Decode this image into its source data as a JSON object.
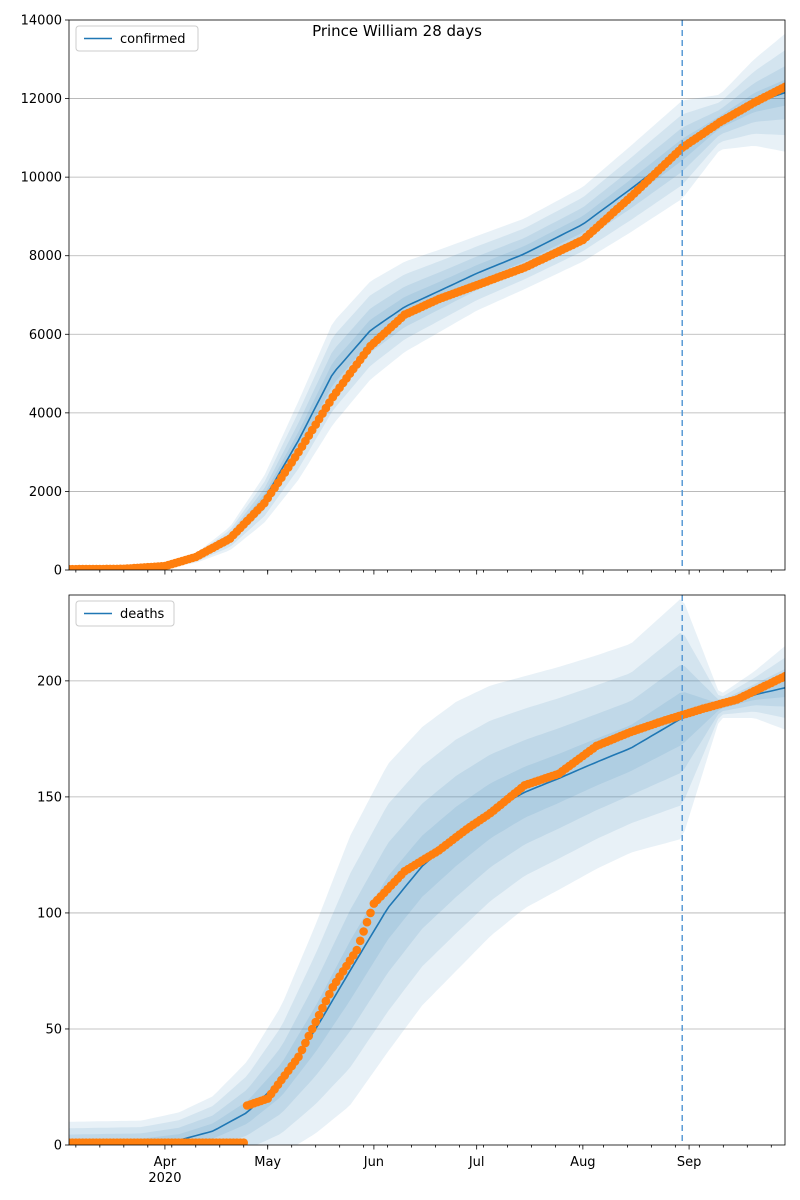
{
  "figure": {
    "title": "Prince William 28 days"
  },
  "colors": {
    "model_line": "#1f77b4",
    "band": "#1f77b4",
    "observed": "#ff7f0e",
    "vline": "#5a9bd5",
    "grid": "#b0b0b0"
  },
  "x_axis": {
    "start": "2020-03-04",
    "end": "2020-09-29",
    "ticks": [
      {
        "date": "2020-04-01",
        "label": "Apr",
        "sublabel": "2020"
      },
      {
        "date": "2020-05-01",
        "label": "May",
        "sublabel": ""
      },
      {
        "date": "2020-06-01",
        "label": "Jun",
        "sublabel": ""
      },
      {
        "date": "2020-07-01",
        "label": "Jul",
        "sublabel": ""
      },
      {
        "date": "2020-08-01",
        "label": "Aug",
        "sublabel": ""
      },
      {
        "date": "2020-09-01",
        "label": "Sep",
        "sublabel": ""
      }
    ],
    "forecast_start": "2020-08-30"
  },
  "chart_data": [
    {
      "type": "line",
      "legend": "confirmed",
      "legend_position": "top-left",
      "ylim": [
        0,
        14000
      ],
      "yticks": [
        0,
        2000,
        4000,
        6000,
        8000,
        10000,
        12000,
        14000
      ],
      "grid": true,
      "model": {
        "dates": [
          "2020-03-04",
          "2020-03-20",
          "2020-04-01",
          "2020-04-10",
          "2020-04-20",
          "2020-04-30",
          "2020-05-10",
          "2020-05-20",
          "2020-05-31",
          "2020-06-10",
          "2020-06-20",
          "2020-07-01",
          "2020-07-15",
          "2020-08-01",
          "2020-08-15",
          "2020-08-30",
          "2020-09-10",
          "2020-09-20",
          "2020-09-29"
        ],
        "values": [
          0,
          20,
          100,
          300,
          800,
          1800,
          3300,
          5000,
          6100,
          6700,
          7100,
          7550,
          8050,
          8800,
          9700,
          10700,
          11400,
          11900,
          12150
        ],
        "band_spread": [
          0,
          10,
          40,
          120,
          300,
          600,
          1000,
          1300,
          1250,
          1150,
          1050,
          950,
          900,
          950,
          1100,
          1250,
          700,
          1100,
          1500
        ]
      },
      "observed": {
        "dates": [
          "2020-03-04",
          "2020-03-20",
          "2020-04-01",
          "2020-04-10",
          "2020-04-20",
          "2020-04-30",
          "2020-05-10",
          "2020-05-20",
          "2020-05-25",
          "2020-05-31",
          "2020-06-10",
          "2020-06-20",
          "2020-07-01",
          "2020-07-15",
          "2020-08-01",
          "2020-08-15",
          "2020-08-30",
          "2020-09-10",
          "2020-09-20",
          "2020-09-29"
        ],
        "values": [
          20,
          30,
          100,
          330,
          800,
          1700,
          3000,
          4400,
          5000,
          5700,
          6500,
          6900,
          7250,
          7700,
          8400,
          9500,
          10750,
          11400,
          11900,
          12300
        ]
      }
    },
    {
      "type": "line",
      "legend": "deaths",
      "legend_position": "top-left",
      "ylim": [
        0,
        237
      ],
      "yticks": [
        0,
        50,
        100,
        150,
        200
      ],
      "grid": true,
      "model": {
        "dates": [
          "2020-03-04",
          "2020-03-25",
          "2020-04-05",
          "2020-04-15",
          "2020-04-25",
          "2020-05-05",
          "2020-05-15",
          "2020-05-25",
          "2020-06-05",
          "2020-06-15",
          "2020-06-25",
          "2020-07-05",
          "2020-07-15",
          "2020-07-25",
          "2020-08-05",
          "2020-08-15",
          "2020-08-30",
          "2020-09-10",
          "2020-09-20",
          "2020-09-29"
        ],
        "values": [
          0,
          0.5,
          2,
          6,
          14,
          28,
          50,
          75,
          102,
          120,
          133,
          144,
          152,
          158,
          165,
          171,
          184,
          189,
          194,
          197
        ],
        "band_spread": [
          10,
          10,
          12,
          15,
          22,
          32,
          45,
          58,
          62,
          60,
          58,
          54,
          50,
          48,
          46,
          45,
          52,
          5,
          10,
          18
        ]
      },
      "observed": {
        "dates": [
          "2020-03-04",
          "2020-04-24",
          "2020-04-25",
          "2020-05-01",
          "2020-05-10",
          "2020-05-20",
          "2020-05-27",
          "2020-06-01",
          "2020-06-10",
          "2020-06-20",
          "2020-06-28",
          "2020-07-05",
          "2020-07-15",
          "2020-07-25",
          "2020-08-05",
          "2020-08-15",
          "2020-08-25",
          "2020-09-05",
          "2020-09-15",
          "2020-09-29"
        ],
        "values": [
          1,
          1,
          17,
          20,
          38,
          68,
          84,
          104,
          118,
          127,
          136,
          143,
          155,
          160,
          172,
          178,
          183,
          188,
          192,
          202
        ]
      }
    }
  ]
}
